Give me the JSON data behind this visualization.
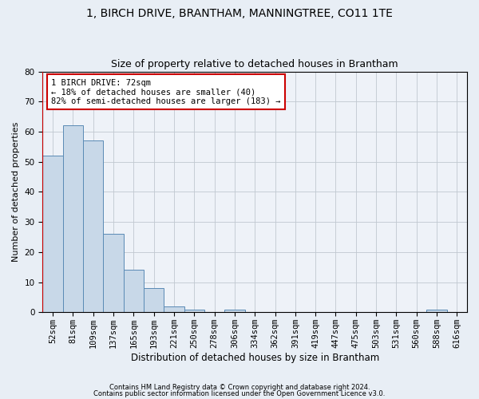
{
  "title1": "1, BIRCH DRIVE, BRANTHAM, MANNINGTREE, CO11 1TE",
  "title2": "Size of property relative to detached houses in Brantham",
  "xlabel": "Distribution of detached houses by size in Brantham",
  "ylabel": "Number of detached properties",
  "footnote1": "Contains HM Land Registry data © Crown copyright and database right 2024.",
  "footnote2": "Contains public sector information licensed under the Open Government Licence v3.0.",
  "bar_labels": [
    "52sqm",
    "81sqm",
    "109sqm",
    "137sqm",
    "165sqm",
    "193sqm",
    "221sqm",
    "250sqm",
    "278sqm",
    "306sqm",
    "334sqm",
    "362sqm",
    "391sqm",
    "419sqm",
    "447sqm",
    "475sqm",
    "503sqm",
    "531sqm",
    "560sqm",
    "588sqm",
    "616sqm"
  ],
  "bar_values": [
    52,
    62,
    57,
    26,
    14,
    8,
    2,
    1,
    0,
    1,
    0,
    0,
    0,
    0,
    0,
    0,
    0,
    0,
    0,
    1,
    0
  ],
  "bar_color": "#c8d8e8",
  "bar_edge_color": "#5a8ab5",
  "highlight_line_color": "#cc0000",
  "annotation_text": "1 BIRCH DRIVE: 72sqm\n← 18% of detached houses are smaller (40)\n82% of semi-detached houses are larger (183) →",
  "annotation_box_color": "#ffffff",
  "annotation_box_edge": "#cc0000",
  "ylim": [
    0,
    80
  ],
  "yticks": [
    0,
    10,
    20,
    30,
    40,
    50,
    60,
    70,
    80
  ],
  "grid_color": "#c0c8d0",
  "bg_color": "#e8eef5",
  "plot_bg_color": "#eef2f8",
  "title1_fontsize": 10,
  "title2_fontsize": 9,
  "xlabel_fontsize": 8.5,
  "ylabel_fontsize": 8,
  "tick_fontsize": 7.5,
  "annotation_fontsize": 7.5,
  "footnote_fontsize": 6
}
